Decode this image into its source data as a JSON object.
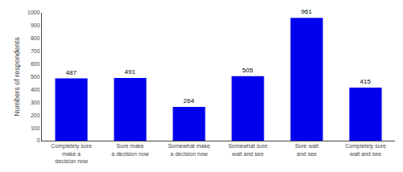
{
  "chart_data": {
    "type": "bar",
    "categories": [
      "Completely sure\nmake a\ndecision now",
      "Sure make\na decision now",
      "Somewhat make\na decision now",
      "Somewhat sure\nwait and see",
      "Sure wait\nand see",
      "Completely sure\nwait and see"
    ],
    "values": [
      487,
      491,
      264,
      505,
      961,
      415
    ],
    "color": "#0000EE",
    "ylabel": "Numbers of respondents",
    "ylim": [
      0,
      1000
    ],
    "yticks": [
      0,
      100,
      200,
      300,
      400,
      500,
      600,
      700,
      800,
      900,
      1000
    ],
    "grid": false,
    "data_labels": true
  }
}
